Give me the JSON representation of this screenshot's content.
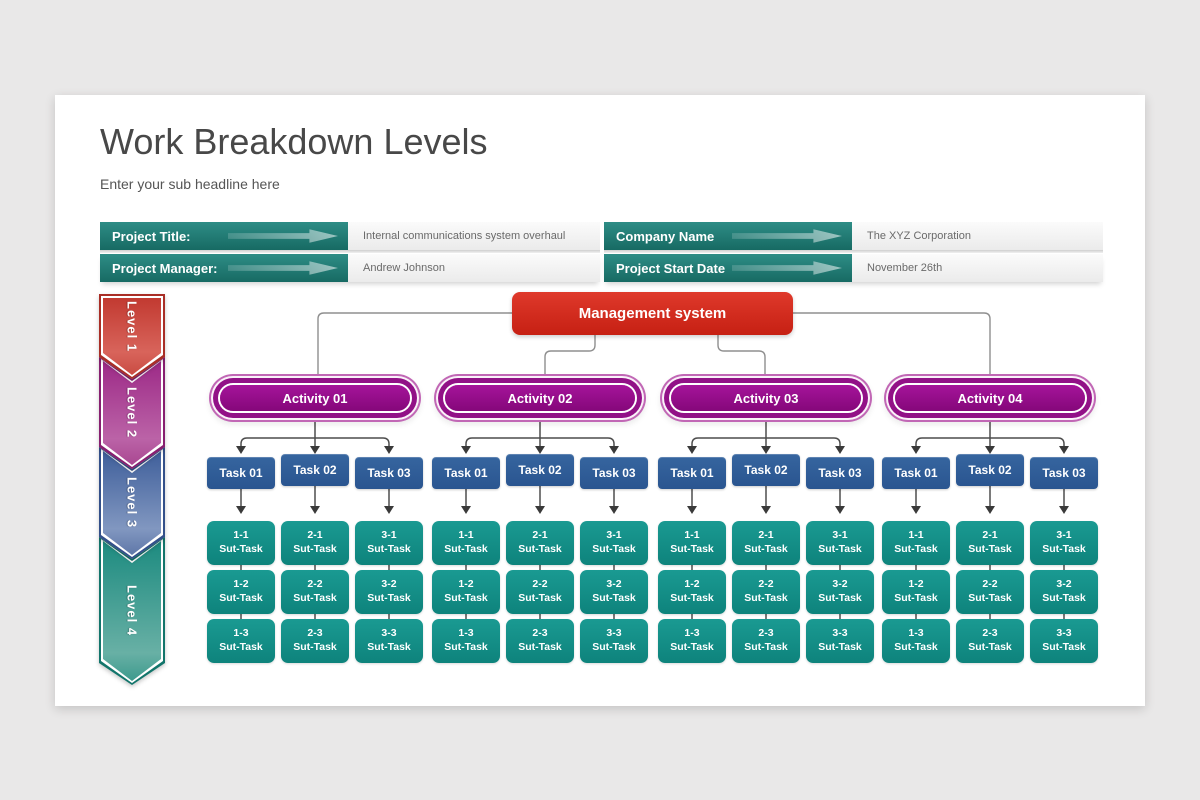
{
  "slide": {
    "title": "Work Breakdown Levels",
    "subtitle": "Enter your sub headline here"
  },
  "project_info": [
    {
      "label": "Project Title:",
      "value": "Internal communications system overhaul"
    },
    {
      "label": "Project Manager:",
      "value": "Andrew Johnson"
    },
    {
      "label": "Company Name",
      "value": "The XYZ Corporation"
    },
    {
      "label": "Project Start Date",
      "value": "November 26th"
    }
  ],
  "levels": [
    {
      "label": "Level 1",
      "color": "#c23a31"
    },
    {
      "label": "Level 2",
      "color": "#9d2a87"
    },
    {
      "label": "Level 3",
      "color": "#3f5f9b"
    },
    {
      "label": "Level 4",
      "color": "#1d8b80"
    }
  ],
  "palette": {
    "info_bar_teal": "#1f7d76",
    "root_red": "#d32d20",
    "activity_purple": "#930e88",
    "task_blue": "#2e5b9c",
    "subtask_teal": "#12928b",
    "connector_gray": "#8f8f8f",
    "background_gray": "#e9e8e8"
  },
  "tree": {
    "root": "Management system",
    "activities": [
      {
        "label": "Activity 01",
        "tasks": [
          {
            "label": "Task 01",
            "subtasks": [
              {
                "id": "1-1",
                "text": "Sut-Task"
              },
              {
                "id": "1-2",
                "text": "Sut-Task"
              },
              {
                "id": "1-3",
                "text": "Sut-Task"
              }
            ]
          },
          {
            "label": "Task 02",
            "subtasks": [
              {
                "id": "2-1",
                "text": "Sut-Task"
              },
              {
                "id": "2-2",
                "text": "Sut-Task"
              },
              {
                "id": "2-3",
                "text": "Sut-Task"
              }
            ]
          },
          {
            "label": "Task 03",
            "subtasks": [
              {
                "id": "3-1",
                "text": "Sut-Task"
              },
              {
                "id": "3-2",
                "text": "Sut-Task"
              },
              {
                "id": "3-3",
                "text": "Sut-Task"
              }
            ]
          }
        ]
      },
      {
        "label": "Activity 02",
        "tasks": [
          {
            "label": "Task 01",
            "subtasks": [
              {
                "id": "1-1",
                "text": "Sut-Task"
              },
              {
                "id": "1-2",
                "text": "Sut-Task"
              },
              {
                "id": "1-3",
                "text": "Sut-Task"
              }
            ]
          },
          {
            "label": "Task 02",
            "subtasks": [
              {
                "id": "2-1",
                "text": "Sut-Task"
              },
              {
                "id": "2-2",
                "text": "Sut-Task"
              },
              {
                "id": "2-3",
                "text": "Sut-Task"
              }
            ]
          },
          {
            "label": "Task 03",
            "subtasks": [
              {
                "id": "3-1",
                "text": "Sut-Task"
              },
              {
                "id": "3-2",
                "text": "Sut-Task"
              },
              {
                "id": "3-3",
                "text": "Sut-Task"
              }
            ]
          }
        ]
      },
      {
        "label": "Activity 03",
        "tasks": [
          {
            "label": "Task 01",
            "subtasks": [
              {
                "id": "1-1",
                "text": "Sut-Task"
              },
              {
                "id": "1-2",
                "text": "Sut-Task"
              },
              {
                "id": "1-3",
                "text": "Sut-Task"
              }
            ]
          },
          {
            "label": "Task 02",
            "subtasks": [
              {
                "id": "2-1",
                "text": "Sut-Task"
              },
              {
                "id": "2-2",
                "text": "Sut-Task"
              },
              {
                "id": "2-3",
                "text": "Sut-Task"
              }
            ]
          },
          {
            "label": "Task 03",
            "subtasks": [
              {
                "id": "3-1",
                "text": "Sut-Task"
              },
              {
                "id": "3-2",
                "text": "Sut-Task"
              },
              {
                "id": "3-3",
                "text": "Sut-Task"
              }
            ]
          }
        ]
      },
      {
        "label": "Activity 04",
        "tasks": [
          {
            "label": "Task 01",
            "subtasks": [
              {
                "id": "1-1",
                "text": "Sut-Task"
              },
              {
                "id": "1-2",
                "text": "Sut-Task"
              },
              {
                "id": "1-3",
                "text": "Sut-Task"
              }
            ]
          },
          {
            "label": "Task 02",
            "subtasks": [
              {
                "id": "2-1",
                "text": "Sut-Task"
              },
              {
                "id": "2-2",
                "text": "Sut-Task"
              },
              {
                "id": "2-3",
                "text": "Sut-Task"
              }
            ]
          },
          {
            "label": "Task 03",
            "subtasks": [
              {
                "id": "3-1",
                "text": "Sut-Task"
              },
              {
                "id": "3-2",
                "text": "Sut-Task"
              },
              {
                "id": "3-3",
                "text": "Sut-Task"
              }
            ]
          }
        ]
      }
    ]
  }
}
